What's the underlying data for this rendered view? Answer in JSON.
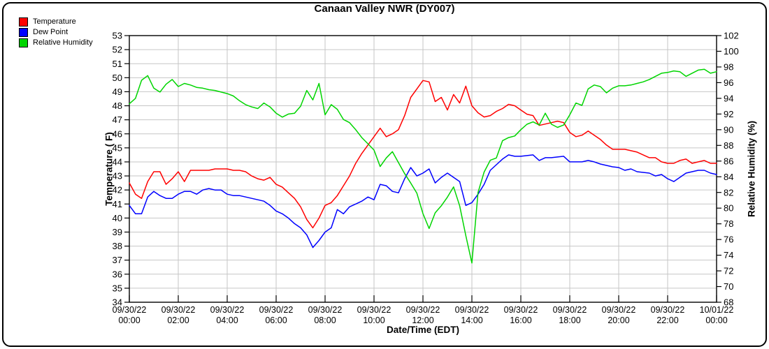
{
  "title": "Canaan Valley NWR (DY007)",
  "legend": [
    {
      "label": "Temperature",
      "color": "#ff0000"
    },
    {
      "label": "Dew Point",
      "color": "#0000ff"
    },
    {
      "label": "Relative Humidity",
      "color": "#00d500"
    }
  ],
  "chart_data": {
    "type": "line",
    "title": "Canaan Valley NWR (DY007)",
    "xlabel": "Date/Time (EDT)",
    "ylabel_left": "Temperature ( F)",
    "ylabel_right": "Relative Humidity (%)",
    "grid": true,
    "legend_position": "top-left-outside",
    "x_hours_range": [
      0,
      24
    ],
    "x_step_hours": 0.25,
    "x_ticks": [
      {
        "hour": 0,
        "date": "09/30/22",
        "time": "00:00"
      },
      {
        "hour": 2,
        "date": "09/30/22",
        "time": "02:00"
      },
      {
        "hour": 4,
        "date": "09/30/22",
        "time": "04:00"
      },
      {
        "hour": 6,
        "date": "09/30/22",
        "time": "06:00"
      },
      {
        "hour": 8,
        "date": "09/30/22",
        "time": "08:00"
      },
      {
        "hour": 10,
        "date": "09/30/22",
        "time": "10:00"
      },
      {
        "hour": 12,
        "date": "09/30/22",
        "time": "12:00"
      },
      {
        "hour": 14,
        "date": "09/30/22",
        "time": "14:00"
      },
      {
        "hour": 16,
        "date": "09/30/22",
        "time": "16:00"
      },
      {
        "hour": 18,
        "date": "09/30/22",
        "time": "18:00"
      },
      {
        "hour": 20,
        "date": "09/30/22",
        "time": "20:00"
      },
      {
        "hour": 22,
        "date": "09/30/22",
        "time": "22:00"
      },
      {
        "hour": 24,
        "date": "10/01/22",
        "time": "00:00"
      }
    ],
    "ylim_left": [
      34,
      53
    ],
    "ytick_step_left": 1,
    "ylim_right": [
      68,
      102
    ],
    "ytick_step_right": 2,
    "series": [
      {
        "name": "Temperature",
        "axis": "left",
        "color": "#ff0000",
        "values": [
          42.5,
          41.7,
          41.4,
          42.6,
          43.3,
          43.3,
          42.4,
          42.8,
          43.3,
          42.6,
          43.4,
          43.4,
          43.4,
          43.4,
          43.5,
          43.5,
          43.5,
          43.4,
          43.4,
          43.3,
          43.0,
          42.8,
          42.7,
          42.9,
          42.4,
          42.2,
          41.8,
          41.4,
          40.8,
          39.9,
          39.3,
          40.0,
          40.9,
          41.1,
          41.6,
          42.3,
          43.0,
          43.9,
          44.6,
          45.2,
          45.8,
          46.4,
          45.8,
          46.0,
          46.3,
          47.3,
          48.6,
          49.2,
          49.8,
          49.7,
          48.3,
          48.6,
          47.7,
          48.8,
          48.2,
          49.4,
          48.0,
          47.5,
          47.2,
          47.3,
          47.6,
          47.8,
          48.1,
          48.0,
          47.7,
          47.4,
          47.3,
          46.6,
          46.7,
          46.8,
          46.9,
          46.8,
          46.1,
          45.8,
          45.9,
          46.2,
          45.9,
          45.6,
          45.2,
          44.9,
          44.9,
          44.9,
          44.8,
          44.7,
          44.5,
          44.3,
          44.3,
          44.0,
          43.9,
          43.9,
          44.1,
          44.2,
          43.9,
          44.0,
          44.1,
          43.9,
          43.9
        ]
      },
      {
        "name": "Dew Point",
        "axis": "left",
        "color": "#0000ff",
        "values": [
          40.9,
          40.3,
          40.3,
          41.5,
          41.9,
          41.6,
          41.4,
          41.4,
          41.7,
          41.9,
          41.9,
          41.7,
          42.0,
          42.1,
          42.0,
          42.0,
          41.7,
          41.6,
          41.6,
          41.5,
          41.4,
          41.3,
          41.2,
          40.9,
          40.5,
          40.3,
          40.0,
          39.6,
          39.3,
          38.8,
          37.9,
          38.4,
          39.0,
          39.3,
          40.6,
          40.3,
          40.8,
          41.0,
          41.2,
          41.5,
          41.3,
          42.4,
          42.3,
          41.9,
          41.8,
          42.8,
          43.6,
          43.0,
          43.2,
          43.5,
          42.5,
          42.9,
          43.2,
          42.9,
          42.6,
          40.9,
          41.1,
          41.7,
          42.4,
          43.4,
          43.8,
          44.2,
          44.5,
          44.4,
          44.4,
          44.45,
          44.5,
          44.1,
          44.3,
          44.3,
          44.35,
          44.4,
          44.0,
          44.0,
          44.0,
          44.1,
          44.0,
          43.85,
          43.75,
          43.65,
          43.6,
          43.4,
          43.5,
          43.3,
          43.25,
          43.2,
          43.0,
          43.1,
          42.8,
          42.6,
          42.9,
          43.2,
          43.3,
          43.4,
          43.4,
          43.2,
          43.1
        ]
      },
      {
        "name": "Relative Humidity",
        "axis": "right",
        "color": "#00d500",
        "values": [
          93.3,
          94.0,
          96.3,
          96.9,
          95.3,
          94.8,
          95.8,
          96.4,
          95.5,
          95.9,
          95.7,
          95.4,
          95.3,
          95.1,
          95.0,
          94.8,
          94.6,
          94.3,
          93.7,
          93.2,
          92.9,
          92.7,
          93.4,
          92.9,
          92.1,
          91.6,
          92.0,
          92.1,
          93.0,
          95.0,
          93.8,
          95.9,
          91.9,
          93.2,
          92.6,
          91.3,
          90.9,
          90.0,
          89.0,
          88.2,
          87.4,
          85.3,
          86.4,
          87.2,
          85.8,
          84.4,
          83.2,
          81.9,
          79.3,
          77.4,
          79.4,
          80.3,
          81.4,
          82.7,
          80.3,
          76.5,
          73.0,
          82.0,
          84.6,
          86.1,
          86.4,
          88.6,
          89.0,
          89.2,
          90.0,
          90.7,
          91.0,
          90.6,
          92.1,
          90.7,
          90.3,
          90.6,
          91.9,
          93.4,
          93.1,
          95.2,
          95.7,
          95.5,
          94.7,
          95.3,
          95.6,
          95.6,
          95.7,
          95.9,
          96.1,
          96.4,
          96.8,
          97.2,
          97.3,
          97.5,
          97.4,
          96.8,
          97.2,
          97.6,
          97.7,
          97.2,
          97.4
        ]
      }
    ]
  },
  "style": {
    "grid_color": "#c6c6c6",
    "axis_color": "#000000",
    "background": "#ffffff"
  }
}
